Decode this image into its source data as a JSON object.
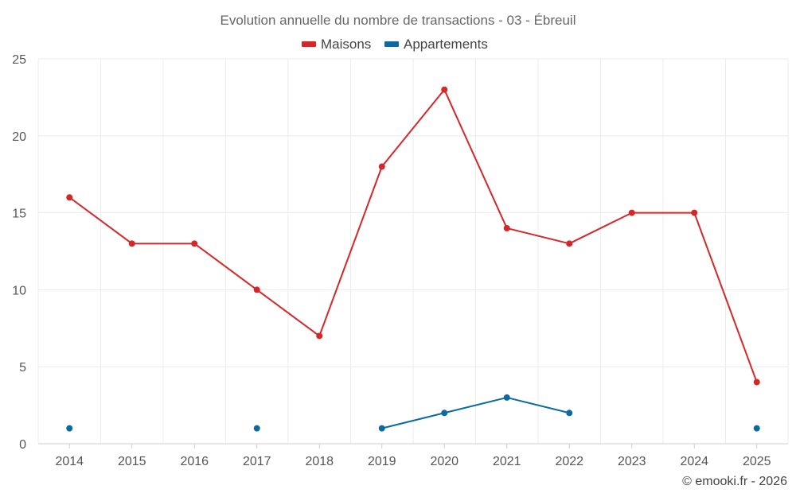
{
  "chart_data": {
    "type": "line",
    "title": "Evolution annuelle du nombre de transactions - 03 - Ébreuil",
    "categories": [
      "2014",
      "2015",
      "2016",
      "2017",
      "2018",
      "2019",
      "2020",
      "2021",
      "2022",
      "2023",
      "2024",
      "2025"
    ],
    "series": [
      {
        "name": "Maisons",
        "color": "#d62728",
        "values": [
          16,
          13,
          13,
          10,
          7,
          18,
          23,
          14,
          13,
          15,
          15,
          4
        ]
      },
      {
        "name": "Appartements",
        "color": "#0b6aa2",
        "values": [
          1,
          null,
          null,
          1,
          null,
          1,
          2,
          3,
          2,
          null,
          null,
          1
        ]
      }
    ],
    "ylim": [
      0,
      25
    ],
    "yticks": [
      0,
      5,
      10,
      15,
      20,
      25
    ],
    "grid": true,
    "legend_position": "top-center",
    "xlabel": "",
    "ylabel": "",
    "credit": "© emooki.fr - 2026"
  }
}
